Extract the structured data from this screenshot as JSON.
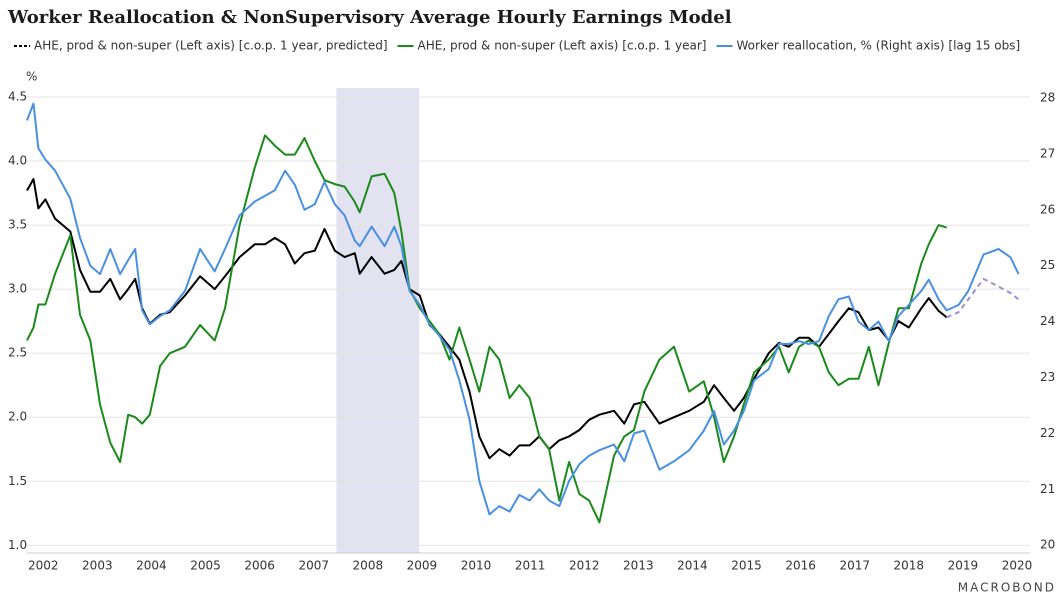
{
  "chart_data": {
    "type": "line",
    "title": "Worker Reallocation & NonSupervisory Average Hourly Earnings Model",
    "y_label": "%",
    "source": "MACROBOND",
    "x": [
      2002.2,
      2002.32,
      2002.41,
      2002.54,
      2002.72,
      2003.0,
      2003.18,
      2003.37,
      2003.55,
      2003.74,
      2003.92,
      2004.07,
      2004.2,
      2004.33,
      2004.47,
      2004.66,
      2004.84,
      2005.12,
      2005.4,
      2005.67,
      2005.86,
      2006.13,
      2006.41,
      2006.6,
      2006.78,
      2006.97,
      2007.15,
      2007.33,
      2007.52,
      2007.7,
      2007.89,
      2008.07,
      2008.26,
      2008.35,
      2008.57,
      2008.81,
      2008.99,
      2009.12,
      2009.27,
      2009.46,
      2009.64,
      2009.82,
      2010.01,
      2010.19,
      2010.38,
      2010.56,
      2010.75,
      2010.93,
      2011.12,
      2011.3,
      2011.49,
      2011.67,
      2011.85,
      2012.04,
      2012.22,
      2012.41,
      2012.59,
      2012.78,
      2013.05,
      2013.24,
      2013.42,
      2013.61,
      2013.89,
      2014.16,
      2014.44,
      2014.71,
      2014.9,
      2015.08,
      2015.27,
      2015.45,
      2015.64,
      2015.91,
      2016.1,
      2016.28,
      2016.47,
      2016.65,
      2016.84,
      2017.02,
      2017.2,
      2017.39,
      2017.57,
      2017.76,
      2017.94,
      2018.13,
      2018.31,
      2018.5,
      2018.73,
      2018.87,
      2019.05,
      2019.2,
      2019.42,
      2019.6,
      2019.88,
      2020.16,
      2020.38,
      2020.53
    ],
    "series": [
      {
        "name": "AHE, prod & non-super (Left axis) [c.o.p. 1 year, predicted]",
        "color": "#000000",
        "axis": "y",
        "values": [
          3.77,
          3.86,
          3.63,
          3.7,
          3.55,
          3.45,
          3.15,
          2.98,
          2.98,
          3.08,
          2.92,
          3.0,
          3.08,
          2.85,
          2.73,
          2.8,
          2.82,
          2.95,
          3.1,
          3.0,
          3.1,
          3.25,
          3.35,
          3.35,
          3.4,
          3.35,
          3.2,
          3.28,
          3.3,
          3.47,
          3.3,
          3.25,
          3.28,
          3.12,
          3.25,
          3.12,
          3.15,
          3.22,
          3.0,
          2.95,
          2.72,
          2.65,
          2.55,
          2.45,
          2.2,
          1.85,
          1.68,
          1.75,
          1.7,
          1.78,
          1.78,
          1.85,
          1.75,
          1.82,
          1.85,
          1.9,
          1.98,
          2.02,
          2.05,
          1.95,
          2.1,
          2.12,
          1.95,
          2.0,
          2.05,
          2.12,
          2.25,
          2.15,
          2.05,
          2.15,
          2.3,
          2.5,
          2.58,
          2.55,
          2.62,
          2.62,
          2.55,
          2.65,
          2.75,
          2.85,
          2.82,
          2.68,
          2.7,
          2.6,
          2.75,
          2.7,
          2.85,
          2.93,
          2.83,
          2.78,
          null,
          null,
          null,
          null,
          null,
          null
        ]
      },
      {
        "name": "AHE, prod & non-super (Left axis) [c.o.p. 1 year]",
        "color": "#1a8a1a",
        "axis": "y",
        "values": [
          2.6,
          2.7,
          2.88,
          2.88,
          3.12,
          3.42,
          2.8,
          2.6,
          2.1,
          1.8,
          1.65,
          2.02,
          2.0,
          1.95,
          2.02,
          2.4,
          2.5,
          2.55,
          2.72,
          2.6,
          2.85,
          3.5,
          3.95,
          4.2,
          4.12,
          4.05,
          4.05,
          4.18,
          4.0,
          3.85,
          3.82,
          3.8,
          3.68,
          3.6,
          3.88,
          3.9,
          3.75,
          3.45,
          3.0,
          2.85,
          2.75,
          2.65,
          2.45,
          2.7,
          2.45,
          2.2,
          2.55,
          2.45,
          2.15,
          2.25,
          2.15,
          1.85,
          1.75,
          1.35,
          1.65,
          1.4,
          1.35,
          1.18,
          1.7,
          1.85,
          1.9,
          2.2,
          2.45,
          2.55,
          2.2,
          2.28,
          2.0,
          1.65,
          1.85,
          2.1,
          2.35,
          2.45,
          2.55,
          2.35,
          2.55,
          2.6,
          2.55,
          2.35,
          2.25,
          2.3,
          2.3,
          2.55,
          2.25,
          2.58,
          2.85,
          2.85,
          3.2,
          3.35,
          3.5,
          3.48,
          null,
          null,
          null,
          null,
          null,
          null
        ]
      },
      {
        "name": "Worker reallocation, % (Right axis) [lag 15 obs]",
        "color": "#4a90e2",
        "axis": "y2",
        "values": [
          27.6,
          27.9,
          27.1,
          26.9,
          26.7,
          26.2,
          25.5,
          25.0,
          24.85,
          25.3,
          24.85,
          25.1,
          25.3,
          24.2,
          23.95,
          24.1,
          24.2,
          24.55,
          25.3,
          24.9,
          25.3,
          25.9,
          26.15,
          26.25,
          26.35,
          26.7,
          26.45,
          26.0,
          26.1,
          26.5,
          26.1,
          25.9,
          25.45,
          25.35,
          25.7,
          25.35,
          25.7,
          25.35,
          24.55,
          24.3,
          23.95,
          23.75,
          23.5,
          22.95,
          22.25,
          21.15,
          20.55,
          20.7,
          20.6,
          20.9,
          20.8,
          21.0,
          20.8,
          20.7,
          21.15,
          21.45,
          21.6,
          21.7,
          21.8,
          21.5,
          22.0,
          22.05,
          21.35,
          21.5,
          21.7,
          22.05,
          22.4,
          21.8,
          22.05,
          22.4,
          22.95,
          23.15,
          23.6,
          23.6,
          23.65,
          23.6,
          23.65,
          24.1,
          24.4,
          24.45,
          24.0,
          23.85,
          24.0,
          23.65,
          24.1,
          24.3,
          24.55,
          24.75,
          24.4,
          24.2,
          24.3,
          24.55,
          25.2,
          25.3,
          25.15,
          24.85
        ]
      },
      {
        "color": "#9a8fd8",
        "axis": "y",
        "dashed": true,
        "values": [
          null,
          null,
          null,
          null,
          null,
          null,
          null,
          null,
          null,
          null,
          null,
          null,
          null,
          null,
          null,
          null,
          null,
          null,
          null,
          null,
          null,
          null,
          null,
          null,
          null,
          null,
          null,
          null,
          null,
          null,
          null,
          null,
          null,
          null,
          null,
          null,
          null,
          null,
          null,
          null,
          null,
          null,
          null,
          null,
          null,
          null,
          null,
          null,
          null,
          null,
          null,
          null,
          null,
          null,
          null,
          null,
          null,
          null,
          null,
          null,
          null,
          null,
          null,
          null,
          null,
          null,
          null,
          null,
          null,
          null,
          null,
          null,
          null,
          null,
          null,
          null,
          null,
          null,
          null,
          null,
          null,
          null,
          null,
          null,
          null,
          null,
          null,
          null,
          null,
          2.78,
          2.82,
          2.92,
          3.08,
          3.02,
          2.97,
          2.92
        ]
      }
    ],
    "recession": {
      "x": [
        2007.92,
        2009.45
      ],
      "color": "#e2e2f0"
    },
    "xlim": [
      2002.2,
      2020.74
    ],
    "xticks": [
      {
        "value": 2002.5,
        "label": "2002"
      },
      {
        "value": 2003.5,
        "label": "2003"
      },
      {
        "value": 2004.5,
        "label": "2004"
      },
      {
        "value": 2005.5,
        "label": "2005"
      },
      {
        "value": 2006.5,
        "label": "2006"
      },
      {
        "value": 2007.5,
        "label": "2007"
      },
      {
        "value": 2008.5,
        "label": "2008"
      },
      {
        "value": 2009.5,
        "label": "2009"
      },
      {
        "value": 2010.5,
        "label": "2010"
      },
      {
        "value": 2011.5,
        "label": "2011"
      },
      {
        "value": 2012.5,
        "label": "2012"
      },
      {
        "value": 2013.5,
        "label": "2013"
      },
      {
        "value": 2014.5,
        "label": "2014"
      },
      {
        "value": 2015.5,
        "label": "2015"
      },
      {
        "value": 2016.5,
        "label": "2016"
      },
      {
        "value": 2017.5,
        "label": "2017"
      },
      {
        "value": 2018.5,
        "label": "2018"
      },
      {
        "value": 2019.5,
        "label": "2019"
      },
      {
        "value": 2020.5,
        "label": "2020"
      }
    ],
    "ylim": [
      0.94,
      4.57
    ],
    "yticks": [
      {
        "value": 1,
        "label": "1.0"
      },
      1.5,
      {
        "value": 2,
        "label": "2.0"
      },
      2.5,
      {
        "value": 3,
        "label": "3.0"
      },
      3.5,
      {
        "value": 4,
        "label": "4.0"
      },
      4.5
    ],
    "y2lim": [
      19.86,
      28.18
    ],
    "y2ticks": [
      20,
      21,
      22,
      23,
      24,
      25,
      26,
      27,
      28
    ],
    "grid": true
  }
}
